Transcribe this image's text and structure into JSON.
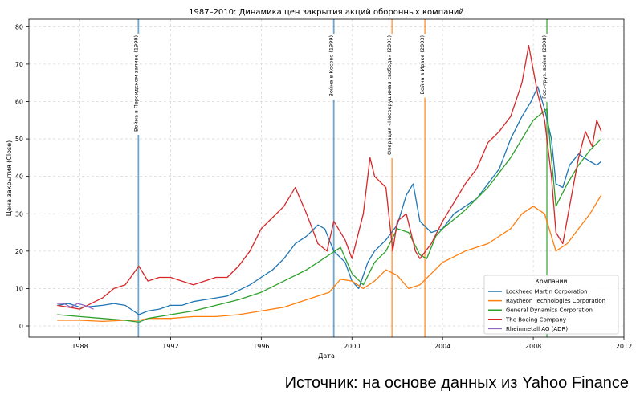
{
  "chart_data": {
    "type": "line",
    "title": "1987–2010: Динамика цен закрытия акций оборонных компаний",
    "xlabel": "Дата",
    "ylabel": "Цена закрытия (Close)",
    "xlim": [
      1985.75,
      2012.0
    ],
    "ylim": [
      -3,
      82
    ],
    "x_ticks": [
      1988,
      1992,
      1996,
      2000,
      2004,
      2008,
      2012
    ],
    "y_ticks": [
      0,
      10,
      20,
      30,
      40,
      50,
      60,
      70,
      80
    ],
    "grid": true,
    "legend_title": "Компании",
    "legend_position": "lower-right",
    "events": [
      {
        "x": 1990.58,
        "label": "Война в Персидском заливе (1990)",
        "color": "#1f77b4"
      },
      {
        "x": 1999.2,
        "label": "Война в Косово (1999)",
        "color": "#1f77b4"
      },
      {
        "x": 2001.77,
        "label": "Операция «Несокрушимая свобода» (2001)",
        "color": "#ff7f0e"
      },
      {
        "x": 2003.22,
        "label": "Война в Ираке (2003)",
        "color": "#ff7f0e"
      },
      {
        "x": 2008.6,
        "label": "Рос.-груз. война (2008)",
        "color": "#2ca02c"
      }
    ],
    "series": [
      {
        "name": "Lockheed Martin Corporation",
        "color": "#1f77b4",
        "x": [
          1987.0,
          1987.5,
          1988.0,
          1988.5,
          1989.0,
          1989.5,
          1990.0,
          1990.6,
          1991.0,
          1991.5,
          1992.0,
          1992.5,
          1993.0,
          1993.5,
          1994.0,
          1994.5,
          1995.0,
          1995.5,
          1996.0,
          1996.5,
          1997.0,
          1997.5,
          1998.0,
          1998.5,
          1998.8,
          1999.2,
          1999.7,
          2000.0,
          2000.3,
          2000.7,
          2001.0,
          2001.5,
          2002.0,
          2002.4,
          2002.7,
          2003.0,
          2003.5,
          2004.0,
          2004.5,
          2005.0,
          2005.5,
          2006.0,
          2006.5,
          2007.0,
          2007.5,
          2007.9,
          2008.2,
          2008.5,
          2008.8,
          2009.0,
          2009.3,
          2009.6,
          2010.0,
          2010.5,
          2010.8,
          2011.0
        ],
        "y": [
          5.5,
          6.0,
          5.0,
          5.2,
          5.5,
          6.0,
          5.5,
          3.0,
          4.0,
          4.5,
          5.5,
          5.5,
          6.5,
          7.0,
          7.5,
          8.0,
          9.5,
          11.0,
          13.0,
          15.0,
          18.0,
          22.0,
          24.0,
          27.0,
          26.0,
          20.0,
          17.0,
          12.0,
          10.0,
          17.0,
          20.0,
          23.0,
          27.0,
          35.0,
          38.0,
          28.0,
          25.0,
          26.0,
          30.0,
          32.0,
          34.0,
          38.0,
          42.0,
          50.0,
          56.0,
          60.0,
          64.0,
          58.0,
          50.0,
          38.0,
          37.0,
          43.0,
          46.0,
          44.0,
          43.0,
          44.0
        ]
      },
      {
        "name": "Raytheon Technologies Corporation",
        "color": "#ff7f0e",
        "x": [
          1987.0,
          1988.0,
          1989.0,
          1990.0,
          1990.6,
          1991.0,
          1992.0,
          1993.0,
          1994.0,
          1995.0,
          1996.0,
          1997.0,
          1998.0,
          1999.0,
          1999.5,
          2000.0,
          2000.5,
          2001.0,
          2001.5,
          2002.0,
          2002.5,
          2003.0,
          2003.5,
          2004.0,
          2005.0,
          2006.0,
          2007.0,
          2007.5,
          2008.0,
          2008.5,
          2009.0,
          2009.5,
          2010.0,
          2010.5,
          2011.0
        ],
        "y": [
          1.5,
          1.5,
          1.2,
          1.5,
          1.5,
          2.0,
          2.0,
          2.5,
          2.5,
          3.0,
          4.0,
          5.0,
          7.0,
          9.0,
          12.5,
          12.0,
          10.0,
          12.0,
          15.0,
          13.5,
          10.0,
          11.0,
          14.0,
          17.0,
          20.0,
          22.0,
          26.0,
          30.0,
          32.0,
          30.0,
          20.0,
          22.0,
          26.0,
          30.0,
          35.0
        ]
      },
      {
        "name": "General Dynamics Corporation",
        "color": "#2ca02c",
        "x": [
          1987.0,
          1988.0,
          1989.0,
          1990.0,
          1990.6,
          1991.0,
          1992.0,
          1993.0,
          1994.0,
          1995.0,
          1996.0,
          1997.0,
          1998.0,
          1999.0,
          1999.5,
          2000.0,
          2000.5,
          2001.0,
          2001.5,
          2002.0,
          2002.5,
          2003.0,
          2003.3,
          2003.7,
          2004.0,
          2005.0,
          2006.0,
          2007.0,
          2007.5,
          2008.0,
          2008.6,
          2009.0,
          2009.5,
          2010.0,
          2010.5,
          2011.0
        ],
        "y": [
          3.0,
          2.5,
          2.0,
          1.5,
          1.0,
          2.0,
          3.0,
          4.0,
          5.5,
          7.0,
          9.0,
          12.0,
          15.0,
          19.0,
          21.0,
          14.0,
          11.0,
          17.0,
          20.0,
          26.0,
          25.0,
          19.0,
          18.0,
          24.0,
          26.0,
          31.0,
          37.0,
          45.0,
          50.0,
          55.0,
          58.0,
          32.0,
          38.0,
          43.0,
          47.0,
          50.0
        ]
      },
      {
        "name": "The Boeing Company",
        "color": "#d62728",
        "x": [
          1987.0,
          1987.5,
          1988.0,
          1988.5,
          1989.0,
          1989.5,
          1990.0,
          1990.6,
          1991.0,
          1991.5,
          1992.0,
          1992.5,
          1993.0,
          1993.5,
          1994.0,
          1994.5,
          1995.0,
          1995.5,
          1996.0,
          1996.5,
          1997.0,
          1997.5,
          1998.0,
          1998.5,
          1998.9,
          1999.2,
          1999.7,
          2000.0,
          2000.5,
          2000.8,
          2001.0,
          2001.5,
          2001.8,
          2002.0,
          2002.4,
          2002.8,
          2003.0,
          2003.5,
          2004.0,
          2004.5,
          2005.0,
          2005.5,
          2006.0,
          2006.5,
          2007.0,
          2007.5,
          2007.8,
          2008.2,
          2008.5,
          2008.8,
          2009.0,
          2009.3,
          2009.6,
          2010.0,
          2010.3,
          2010.6,
          2010.8,
          2011.0
        ],
        "y": [
          5.5,
          5.0,
          4.5,
          6.0,
          7.5,
          10.0,
          11.0,
          16.0,
          12.0,
          13.0,
          13.0,
          12.0,
          11.0,
          12.0,
          13.0,
          13.0,
          16.0,
          20.0,
          26.0,
          29.0,
          32.0,
          37.0,
          30.0,
          22.0,
          20.0,
          28.0,
          23.0,
          18.0,
          30.0,
          45.0,
          40.0,
          37.0,
          20.0,
          28.0,
          30.0,
          20.0,
          18.0,
          22.0,
          28.0,
          33.0,
          38.0,
          42.0,
          49.0,
          52.0,
          56.0,
          65.0,
          75.0,
          62.0,
          55.0,
          40.0,
          25.0,
          22.0,
          32.0,
          45.0,
          52.0,
          48.0,
          55.0,
          52.0
        ]
      },
      {
        "name": "Rheinmetall AG (ADR)",
        "color": "#9467bd",
        "x": [
          1987.0,
          1987.3,
          1987.6,
          1987.9,
          1988.2,
          1988.6
        ],
        "y": [
          6.0,
          6.0,
          5.0,
          6.0,
          5.5,
          4.5
        ]
      }
    ]
  },
  "footer": {
    "source": "Источник: на основе данных из Yahoo Finance"
  }
}
